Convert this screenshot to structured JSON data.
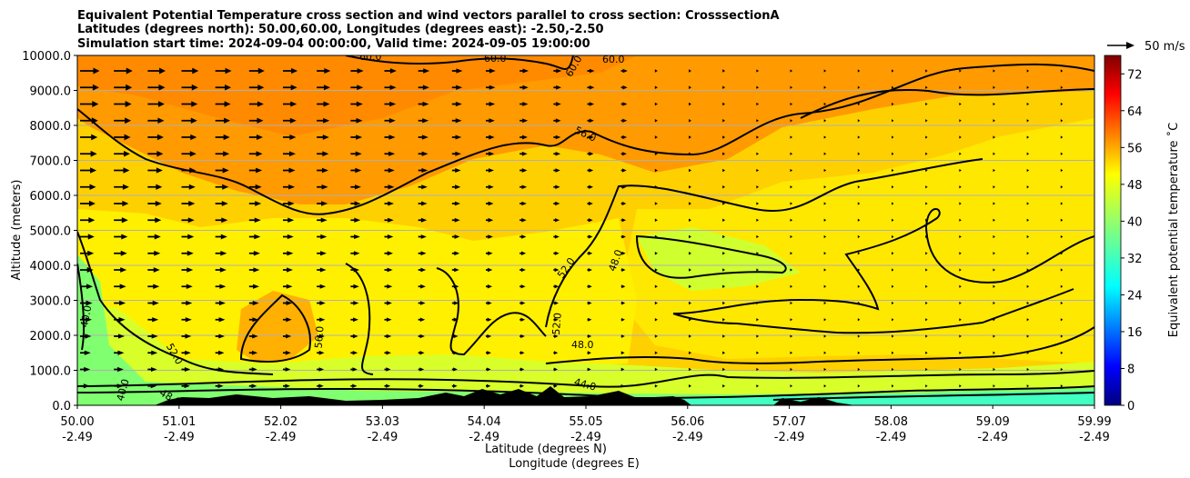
{
  "chart_data": {
    "type": "heatmap",
    "title_lines": [
      "Equivalent Potential Temperature cross section and wind vectors parallel to cross section: CrosssectionA",
      "Latitudes (degrees north): 50.00,60.00, Longitudes (degrees east): -2.50,-2.50",
      "Simulation start time: 2024-09-04 00:00:00, Valid time: 2024-09-05 19:00:00"
    ],
    "ylabel": "Altitude (meters)",
    "xlabel_lines": [
      "Latitude (degrees N)",
      "Longitude (degrees E)"
    ],
    "ylim": [
      0,
      10000
    ],
    "y_ticks": [
      "0.0",
      "1000.0",
      "2000.0",
      "3000.0",
      "4000.0",
      "5000.0",
      "6000.0",
      "7000.0",
      "8000.0",
      "9000.0",
      "10000.0"
    ],
    "x_ticks_lat": [
      "50.00",
      "51.01",
      "52.02",
      "53.03",
      "54.04",
      "55.05",
      "56.06",
      "57.07",
      "58.08",
      "59.09",
      "59.99"
    ],
    "x_ticks_lon": [
      "-2.49",
      "-2.49",
      "-2.49",
      "-2.49",
      "-2.49",
      "-2.49",
      "-2.49",
      "-2.49",
      "-2.49",
      "-2.49",
      "-2.49"
    ],
    "grid": "horizontal",
    "colorbar": {
      "label": "Equivalent potential temperature ˚C",
      "range": [
        0,
        76
      ],
      "ticks": [
        "0",
        "8",
        "16",
        "24",
        "32",
        "40",
        "48",
        "56",
        "64",
        "72"
      ]
    },
    "quiver_key": "50 m/s",
    "contour_labels": [
      "40.0",
      "40.0",
      "48.0",
      "48.0",
      "48.0",
      "52.0",
      "52.0",
      "52.0",
      "56.0",
      "56.0",
      "60.0",
      "60.0",
      "60.0",
      "60.0",
      "44.0"
    ],
    "colors": {
      "orange": "#ff8c00",
      "yellow": "#fff200",
      "green": "#7fff66",
      "terrain": "#000000"
    }
  }
}
